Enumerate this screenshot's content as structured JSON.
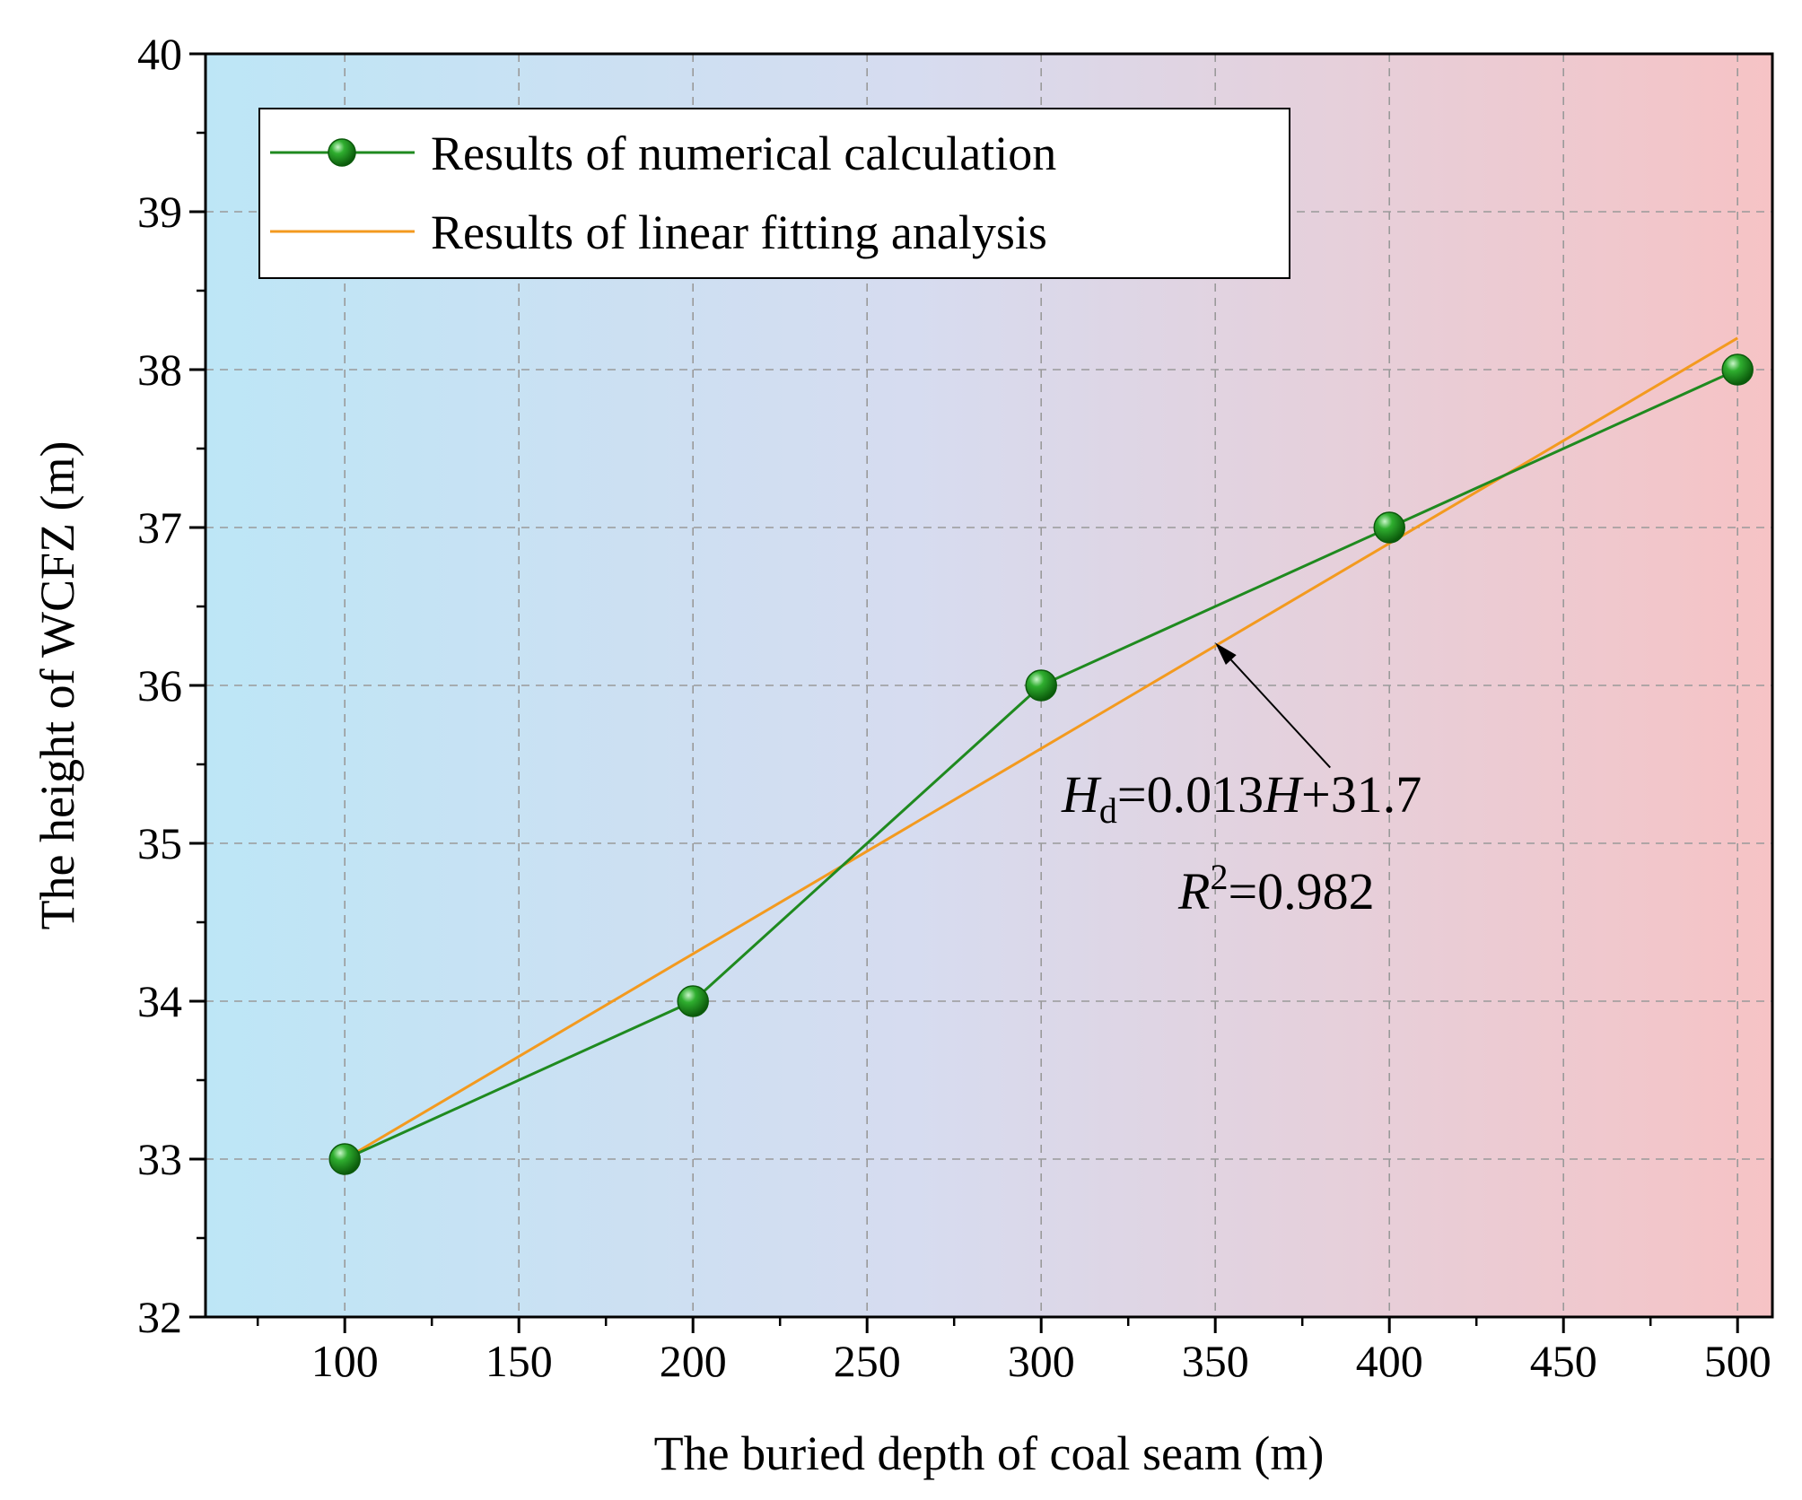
{
  "chart_data": {
    "type": "line",
    "title": "",
    "xlabel": "The buried depth of coal seam (m)",
    "ylabel": "The height of WCFZ (m)",
    "xlim": [
      60,
      510
    ],
    "ylim": [
      32,
      40
    ],
    "x_ticks": [
      100,
      150,
      200,
      250,
      300,
      350,
      400,
      450,
      500
    ],
    "y_ticks": [
      32,
      33,
      34,
      35,
      36,
      37,
      38,
      39,
      40
    ],
    "grid": true,
    "legend_position": "top-left",
    "background": "horizontal gradient from light blue to light pink",
    "series": [
      {
        "name": "Results of numerical calculation",
        "kind": "line-with-markers",
        "color": "#1f8a1f",
        "marker_color": "#1a8f1a",
        "x": [
          100,
          200,
          300,
          400,
          500
        ],
        "y": [
          33,
          34,
          36,
          37,
          38
        ]
      },
      {
        "name": "Results of linear fitting analysis",
        "kind": "line",
        "color": "#f39a1f",
        "x": [
          100,
          500
        ],
        "y": [
          33.0,
          38.2
        ]
      }
    ],
    "annotation": {
      "equation": {
        "lhs_symbol": "H",
        "lhs_subscript": "d",
        "middle": "=0.013",
        "rhs_symbol": "H",
        "tail": "+31.7"
      },
      "r2": {
        "symbol": "R",
        "superscript": "2",
        "tail": "=0.982"
      },
      "arrow_target": {
        "x": 350,
        "y": 36.27
      },
      "arrow_base": {
        "x": 383,
        "y": 35.48
      }
    },
    "colors": {
      "bg_left": "#bde6f6",
      "bg_right": "#f6c3c5",
      "grid": "#9a9a9a",
      "fit_line": "#f39a1f",
      "calc_line": "#1f8a1f"
    }
  }
}
